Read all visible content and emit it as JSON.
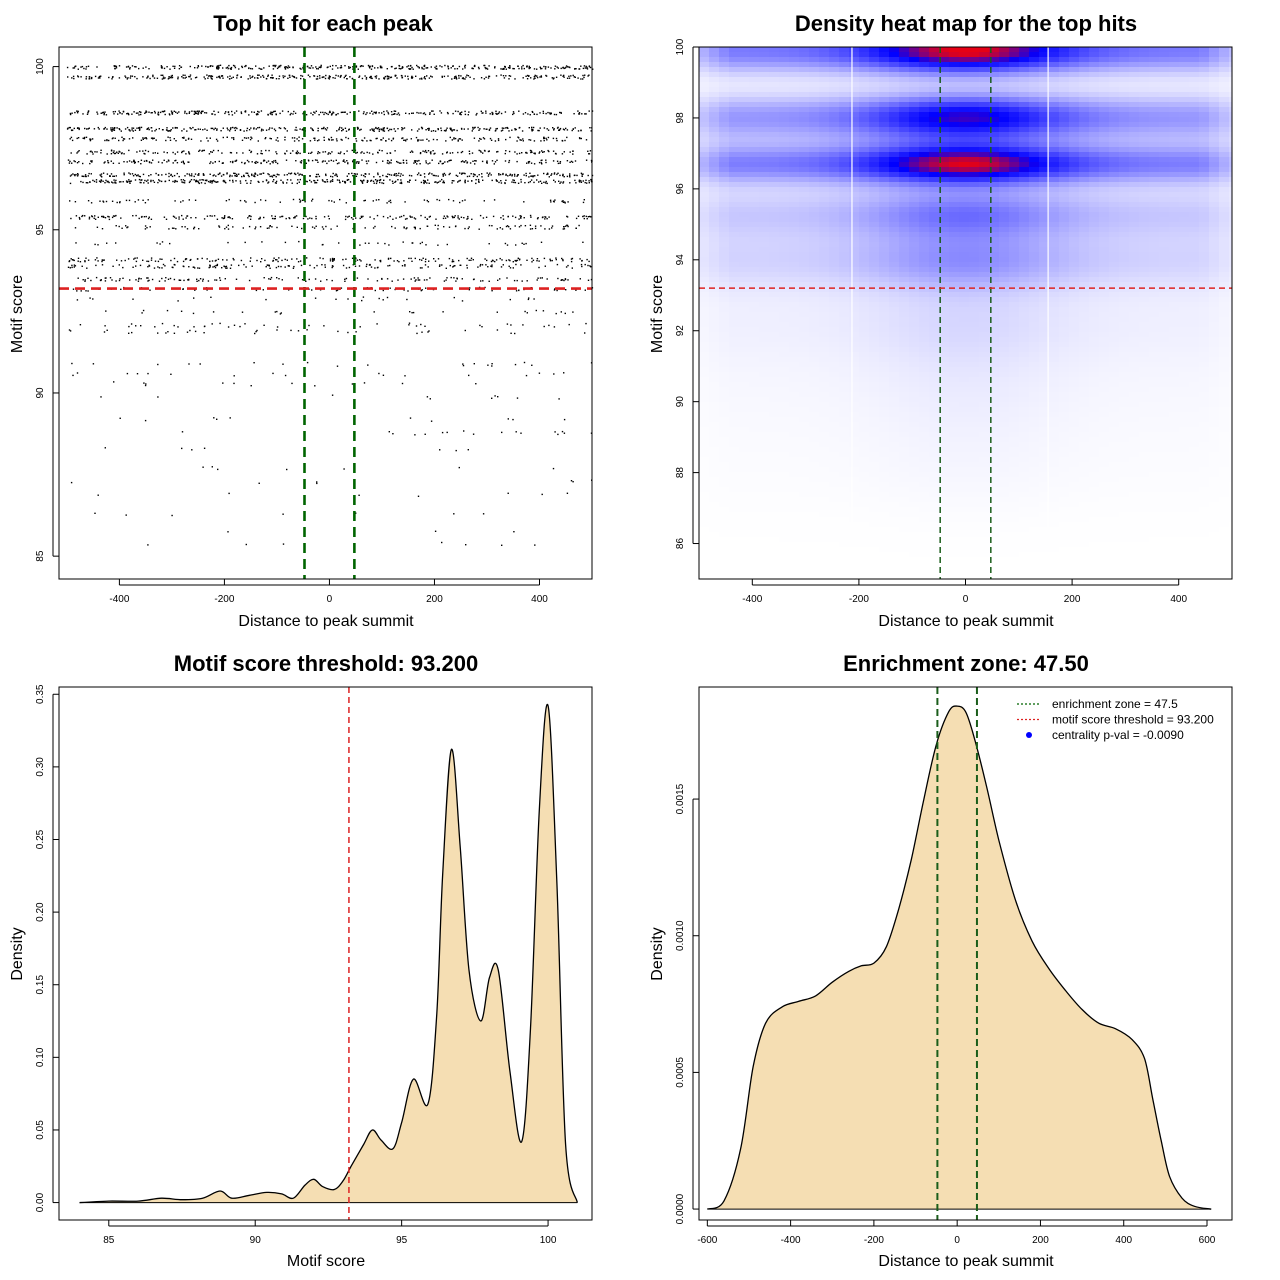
{
  "chart_data": [
    {
      "type": "scatter",
      "title": "Top hit for each peak",
      "xlabel": "Distance to peak summit",
      "ylabel": "Motif score",
      "xlim": [
        -515,
        500
      ],
      "ylim": [
        84.3,
        100.6
      ],
      "xticks": [
        -400,
        -200,
        0,
        200,
        400
      ],
      "xtick_labels": [
        "-400",
        "-200",
        "0",
        "200",
        "400"
      ],
      "yticks": [
        85,
        90,
        95,
        100
      ],
      "ytick_labels": [
        "85",
        "90",
        "95",
        "100"
      ],
      "vlines": [
        -47.5,
        47.5
      ],
      "hline": 93.2,
      "grid": false,
      "line_colors": {
        "enrichment": "#006400",
        "threshold": "#dd2222"
      },
      "score_levels": [
        100,
        99.7,
        98.6,
        98.1,
        97.8,
        97.4,
        97.1,
        96.7,
        96.5,
        95.9,
        95.4,
        95.1,
        94.6,
        94.1,
        93.9,
        93.5,
        93.2,
        92.9,
        92.5,
        92.1,
        91.9,
        90.9,
        90.6,
        90.3,
        89.9,
        89.2,
        88.8,
        88.3,
        87.7,
        87.3,
        86.9,
        86.3,
        85.8,
        85.4
      ],
      "score_density": [
        1.0,
        0.95,
        0.9,
        0.95,
        0.6,
        0.6,
        0.7,
        0.9,
        0.95,
        0.25,
        0.6,
        0.35,
        0.12,
        0.55,
        0.45,
        0.4,
        0.2,
        0.07,
        0.08,
        0.12,
        0.1,
        0.06,
        0.05,
        0.04,
        0.03,
        0.03,
        0.05,
        0.02,
        0.02,
        0.02,
        0.02,
        0.02,
        0.01,
        0.02
      ]
    },
    {
      "type": "heatmap",
      "title": "Density heat map for the top hits",
      "xlabel": "Distance to peak summit",
      "ylabel": "Motif score",
      "xlim": [
        -500,
        500
      ],
      "ylim": [
        85,
        100
      ],
      "xticks": [
        -400,
        -200,
        0,
        200,
        400
      ],
      "xtick_labels": [
        "-400",
        "-200",
        "0",
        "200",
        "400"
      ],
      "yticks": [
        86,
        88,
        90,
        92,
        94,
        96,
        98,
        100
      ],
      "ytick_labels": [
        "86",
        "88",
        "90",
        "92",
        "94",
        "96",
        "98",
        "100"
      ],
      "vlines": [
        -47.5,
        47.5
      ],
      "hline": 93.2,
      "white_lines_x": [
        -213,
        155
      ],
      "color_scale": [
        "#ffffff",
        "#0000ff",
        "#ff0000"
      ],
      "grid": false,
      "density_bands": [
        {
          "score": 99.9,
          "width": 0.45,
          "intensity": 1.15
        },
        {
          "score": 98.0,
          "width": 0.45,
          "intensity": 0.9
        },
        {
          "score": 96.7,
          "width": 0.4,
          "intensity": 1.1
        },
        {
          "score": 95.3,
          "width": 0.5,
          "intensity": 0.45
        },
        {
          "score": 94.0,
          "width": 0.6,
          "intensity": 0.35
        },
        {
          "score": 92.3,
          "width": 0.9,
          "intensity": 0.12
        },
        {
          "score": 90.5,
          "width": 1.0,
          "intensity": 0.05
        },
        {
          "score": 88.5,
          "width": 1.2,
          "intensity": 0.03
        }
      ]
    },
    {
      "type": "area",
      "title": "Motif score threshold: 93.200",
      "xlabel": "Motif score",
      "ylabel": "Density",
      "xlim": [
        83.3,
        101.5
      ],
      "ylim": [
        -0.012,
        0.355
      ],
      "xticks": [
        85,
        90,
        95,
        100
      ],
      "xtick_labels": [
        "85",
        "90",
        "95",
        "100"
      ],
      "yticks": [
        0.0,
        0.05,
        0.1,
        0.15,
        0.2,
        0.25,
        0.3,
        0.35
      ],
      "ytick_labels": [
        "0.00",
        "0.05",
        "0.10",
        "0.15",
        "0.20",
        "0.25",
        "0.30",
        "0.35"
      ],
      "vline": 93.2,
      "fill_color": "#f5deb3",
      "grid": false,
      "x": [
        84.0,
        85.0,
        86.0,
        86.8,
        87.5,
        88.2,
        88.8,
        89.2,
        89.8,
        90.4,
        90.9,
        91.3,
        91.7,
        92.0,
        92.3,
        92.7,
        93.0,
        93.3,
        93.7,
        94.0,
        94.3,
        94.7,
        95.0,
        95.4,
        95.9,
        96.2,
        96.4,
        96.7,
        97.0,
        97.3,
        97.7,
        98.0,
        98.3,
        98.7,
        99.1,
        99.4,
        99.7,
        100.0,
        100.3,
        100.6,
        101.0
      ],
      "y": [
        0.0,
        0.001,
        0.001,
        0.003,
        0.002,
        0.003,
        0.008,
        0.003,
        0.005,
        0.007,
        0.006,
        0.003,
        0.012,
        0.016,
        0.011,
        0.009,
        0.015,
        0.026,
        0.04,
        0.05,
        0.043,
        0.037,
        0.055,
        0.085,
        0.068,
        0.13,
        0.225,
        0.312,
        0.245,
        0.16,
        0.125,
        0.155,
        0.16,
        0.09,
        0.042,
        0.12,
        0.27,
        0.342,
        0.22,
        0.04,
        0.0
      ]
    },
    {
      "type": "area",
      "title": "Enrichment zone: 47.50",
      "xlabel": "Distance to peak summit",
      "ylabel": "Density",
      "xlim": [
        -620,
        660
      ],
      "ylim": [
        -4e-05,
        0.00191
      ],
      "xticks": [
        -600,
        -400,
        -200,
        0,
        200,
        400,
        600
      ],
      "xtick_labels": [
        "-600",
        "-400",
        "-200",
        "0",
        "200",
        "400",
        "600"
      ],
      "yticks": [
        0.0,
        0.0005,
        0.001,
        0.0015
      ],
      "ytick_labels": [
        "0.0000",
        "0.0005",
        "0.0010",
        "0.0015"
      ],
      "vlines": [
        -47.5,
        47.5
      ],
      "fill_color": "#f5deb3",
      "grid": false,
      "legend_position": "top-right",
      "legend": [
        {
          "label": "enrichment zone = 47.5",
          "color": "#006400",
          "style": "dotted-line"
        },
        {
          "label": "motif score threshold = 93.200",
          "color": "#dd2222",
          "style": "dotted-line"
        },
        {
          "label": "centrality p-val = -0.0090",
          "color": "#0000ff",
          "style": "point"
        }
      ],
      "x": [
        -600,
        -560,
        -520,
        -490,
        -460,
        -420,
        -380,
        -340,
        -300,
        -260,
        -230,
        -200,
        -170,
        -140,
        -110,
        -80,
        -50,
        -20,
        0,
        20,
        40,
        70,
        100,
        140,
        180,
        220,
        260,
        300,
        340,
        380,
        420,
        450,
        470,
        490,
        510,
        540,
        570,
        610
      ],
      "y": [
        0.0,
        3e-05,
        0.00022,
        0.00052,
        0.00068,
        0.00074,
        0.00076,
        0.00078,
        0.00083,
        0.00087,
        0.00089,
        0.0009,
        0.00096,
        0.0011,
        0.00128,
        0.0015,
        0.0017,
        0.00182,
        0.00184,
        0.00182,
        0.00173,
        0.00155,
        0.00135,
        0.00113,
        0.00098,
        0.00088,
        0.0008,
        0.00073,
        0.00068,
        0.00066,
        0.00062,
        0.00055,
        0.0004,
        0.00025,
        0.00012,
        4e-05,
        1e-05,
        0.0
      ]
    }
  ]
}
